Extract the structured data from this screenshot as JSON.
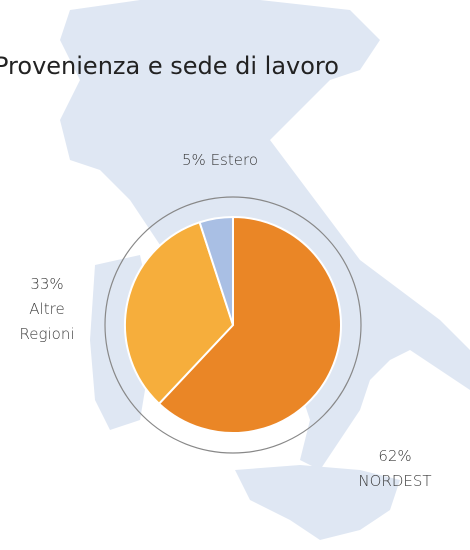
{
  "chart_data": {
    "type": "pie",
    "title": "Provenienza e sede di lavoro",
    "categories": [
      "NORDEST",
      "Altre Regioni",
      "Estero"
    ],
    "values": [
      62,
      33,
      5
    ],
    "value_labels": [
      "62%",
      "33%",
      "5%"
    ],
    "colors": [
      "#ea8626",
      "#f6ae3c",
      "#a9bfe4"
    ]
  }
}
